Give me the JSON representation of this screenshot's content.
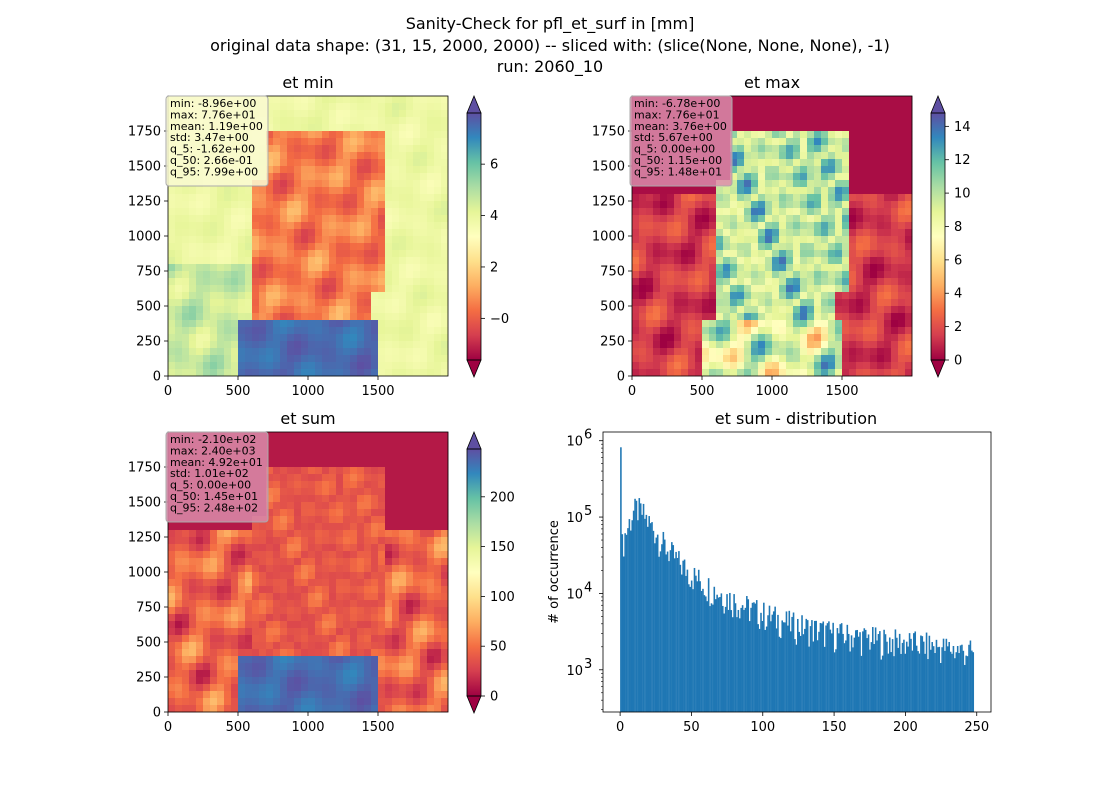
{
  "figure": {
    "title_lines": [
      "Sanity-Check for pfl_et_surf in [mm]",
      "original data shape: (31, 15, 2000, 2000) -- sliced with: (slice(None, None, None), -1)",
      "run: 2060_10"
    ]
  },
  "chart_data": [
    {
      "type": "heatmap",
      "title": "et min",
      "colormap": "Spectral",
      "xlim": [
        0,
        2000
      ],
      "ylim": [
        0,
        2000
      ],
      "xticks": [
        0,
        500,
        1000,
        1500
      ],
      "yticks": [
        0,
        250,
        500,
        750,
        1000,
        1250,
        1500,
        1750
      ],
      "colorbar": {
        "range": [
          -1.62,
          7.99
        ],
        "ticks": [
          0,
          2,
          4,
          6
        ],
        "extend": "both"
      },
      "stats_box": [
        "min: -8.96e+00",
        "max: 7.76e+01",
        "mean: 1.19e+00",
        "std: 3.47e+00",
        "q_5: -1.62e+00",
        "q_50: 2.66e-01",
        "q_95: 7.99e+00"
      ],
      "stats_box_color": "#fafad2"
    },
    {
      "type": "heatmap",
      "title": "et max",
      "colormap": "Spectral",
      "xlim": [
        0,
        2000
      ],
      "ylim": [
        0,
        2000
      ],
      "xticks": [
        0,
        500,
        1000,
        1500
      ],
      "yticks": [
        0,
        250,
        500,
        750,
        1000,
        1250,
        1500,
        1750
      ],
      "colorbar": {
        "range": [
          0,
          14.8
        ],
        "ticks": [
          0,
          2,
          4,
          6,
          8,
          10,
          12,
          14
        ],
        "extend": "both"
      },
      "stats_box": [
        "min: -6.78e+00",
        "max: 7.76e+01",
        "mean: 3.76e+00",
        "std: 5.67e+00",
        "q_5: 0.00e+00",
        "q_50: 1.15e+00",
        "q_95: 1.48e+01"
      ],
      "stats_box_color": "#d98caa"
    },
    {
      "type": "heatmap",
      "title": "et sum",
      "colormap": "Spectral",
      "xlim": [
        0,
        2000
      ],
      "ylim": [
        0,
        2000
      ],
      "xticks": [
        0,
        500,
        1000,
        1500
      ],
      "yticks": [
        0,
        250,
        500,
        750,
        1000,
        1250,
        1500,
        1750
      ],
      "colorbar": {
        "range": [
          0,
          248
        ],
        "ticks": [
          0,
          50,
          100,
          150,
          200
        ],
        "extend": "both"
      },
      "stats_box": [
        "min: -2.10e+02",
        "max: 2.40e+03",
        "mean: 4.92e+01",
        "std: 1.01e+02",
        "q_5: 0.00e+00",
        "q_50: 1.45e+01",
        "q_95: 2.48e+02"
      ],
      "stats_box_color": "#d98caa"
    },
    {
      "type": "bar",
      "subtype": "histogram",
      "title": "et sum - distribution",
      "ylabel": "# of occurrence",
      "xlim": [
        -12,
        260
      ],
      "yscale": "log",
      "ylim": [
        280,
        1300000
      ],
      "xticks": [
        0,
        50,
        100,
        150,
        200,
        250
      ],
      "yticks": [
        {
          "value": 1000,
          "base": "10",
          "exp": "3"
        },
        {
          "value": 10000,
          "base": "10",
          "exp": "4"
        },
        {
          "value": 100000,
          "base": "10",
          "exp": "5"
        },
        {
          "value": 1000000,
          "base": "10",
          "exp": "6"
        }
      ],
      "bar_color": "#1f77b4",
      "bin_range": [
        0,
        248
      ],
      "peaks": [
        {
          "x": 0,
          "y": 820000
        },
        {
          "x": 12,
          "y": 130000
        },
        {
          "x": 248,
          "y": 1700
        }
      ],
      "approx_profile": [
        [
          0,
          820000
        ],
        [
          1,
          40000
        ],
        [
          3,
          55000
        ],
        [
          6,
          80000
        ],
        [
          9,
          115000
        ],
        [
          12,
          130000
        ],
        [
          16,
          110000
        ],
        [
          20,
          85000
        ],
        [
          25,
          65000
        ],
        [
          30,
          45000
        ],
        [
          40,
          27000
        ],
        [
          50,
          18000
        ],
        [
          60,
          13000
        ],
        [
          75,
          9000
        ],
        [
          90,
          6500
        ],
        [
          100,
          5500
        ],
        [
          120,
          4000
        ],
        [
          150,
          3000
        ],
        [
          180,
          2500
        ],
        [
          210,
          2200
        ],
        [
          248,
          1700
        ]
      ]
    }
  ]
}
